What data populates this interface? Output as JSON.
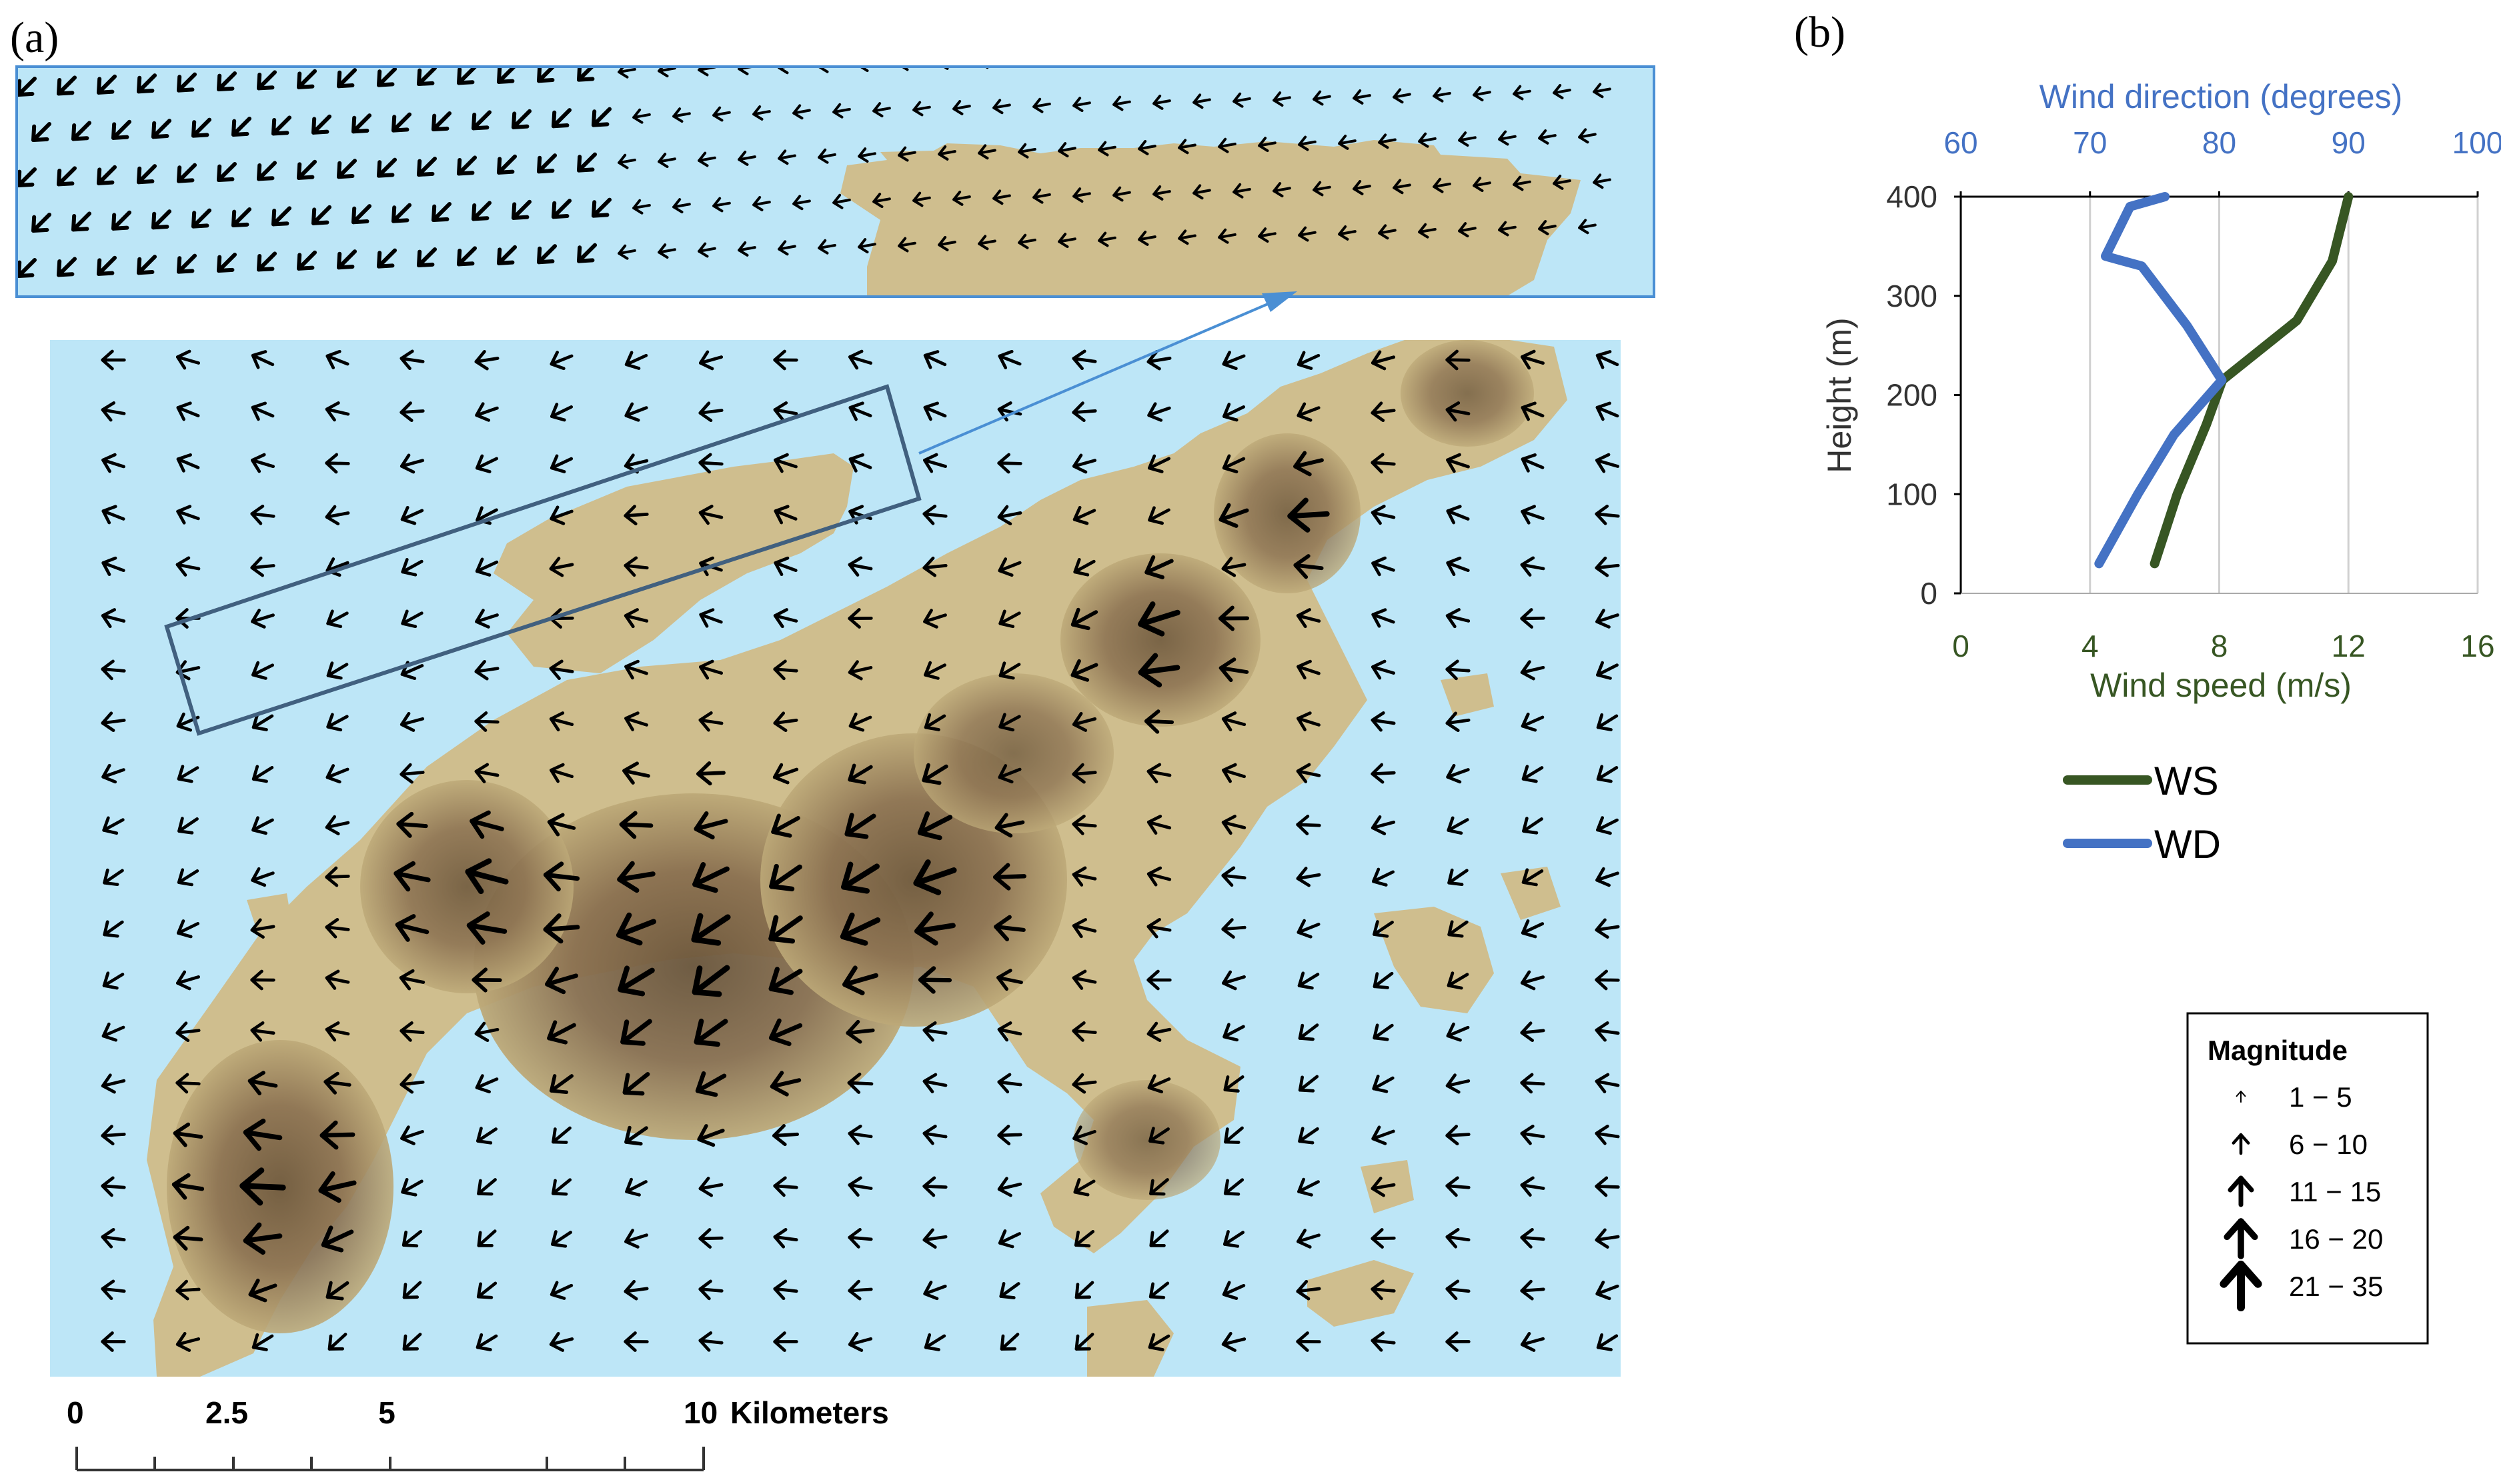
{
  "panels": {
    "a": "(a)",
    "b": "(b)"
  },
  "scale_bar": {
    "ticks": [
      "0",
      "2.5",
      "5",
      "10"
    ],
    "unit": "Kilometers"
  },
  "magnitude_legend": {
    "title": "Magnitude",
    "classes": [
      "1 − 5",
      "6 − 10",
      "11 − 15",
      "16 − 20",
      "21 − 35"
    ]
  },
  "colors": {
    "water": "#bde6f7",
    "land_light": "#cfbe8e",
    "land_dark": "#6b553a",
    "ws": "#375623",
    "wd": "#4472c4",
    "box": "#41607f",
    "inset_border": "#4a8fd4"
  },
  "chart_data": {
    "type": "line",
    "series": [
      {
        "name": "WS",
        "axis": "bottom",
        "x": [
          6,
          6.7,
          7.6,
          8.1,
          10.4,
          11.5,
          12.0
        ],
        "y": [
          30,
          100,
          170,
          215,
          275,
          335,
          400
        ]
      },
      {
        "name": "WD",
        "axis": "top",
        "x": [
          70.7,
          73.7,
          76.5,
          80.2,
          77.5,
          74.0,
          71.2,
          73.1,
          75.8
        ],
        "y": [
          30,
          100,
          160,
          215,
          270,
          330,
          340,
          390,
          400
        ]
      }
    ],
    "xlabel_bottom": "Wind speed (m/s)",
    "xlabel_top": "Wind direction (degrees)",
    "ylabel": "Height (m)",
    "xlim_bottom": [
      0,
      16
    ],
    "xticks_bottom": [
      "0",
      "4",
      "8",
      "12",
      "16"
    ],
    "xlim_top": [
      60,
      100
    ],
    "xticks_top": [
      "60",
      "70",
      "80",
      "90",
      "100"
    ],
    "ylim": [
      0,
      400
    ],
    "yticks": [
      "0",
      "100",
      "200",
      "300",
      "400"
    ],
    "grid": "vertical",
    "legend": "below"
  }
}
